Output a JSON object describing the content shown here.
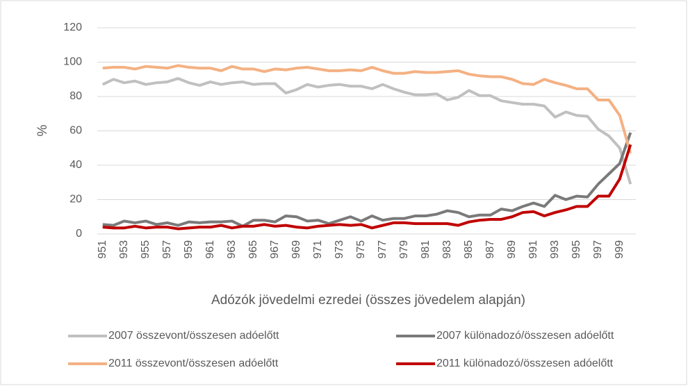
{
  "chart_data": {
    "type": "line",
    "x_label": "Adózók jövedelmi ezredei (összes jövedelem alapján)",
    "y_label": "%",
    "categories": [
      "951",
      null,
      "953",
      null,
      "955",
      null,
      "957",
      null,
      "959",
      null,
      "961",
      null,
      "963",
      null,
      "965",
      null,
      "967",
      null,
      "969",
      null,
      "971",
      null,
      "973",
      null,
      "975",
      null,
      "977",
      null,
      "979",
      null,
      "981",
      null,
      "983",
      null,
      "985",
      null,
      "987",
      null,
      "989",
      null,
      "991",
      null,
      "993",
      null,
      "995",
      null,
      "997",
      null,
      "999",
      null
    ],
    "series": [
      {
        "name": "2007 összevont/összesen adóelőtt",
        "color": "#c0c0c0",
        "values": [
          87,
          90,
          88,
          89,
          87,
          88,
          88.5,
          90.5,
          88,
          86.5,
          88.5,
          87,
          88,
          88.5,
          87,
          87.5,
          87.5,
          82,
          84,
          87,
          85.5,
          86.5,
          87,
          86,
          86,
          84.5,
          87,
          84.5,
          82.5,
          81,
          81,
          81.5,
          78,
          79.5,
          83.5,
          80.5,
          80.5,
          77.5,
          76.5,
          75.5,
          75.5,
          74.5,
          68,
          71,
          69,
          68.5,
          61,
          57,
          50,
          29
        ]
      },
      {
        "name": "2007 különadozó/összesen adóelőtt",
        "color": "#7a7a7a",
        "values": [
          5.5,
          5,
          7.5,
          6.5,
          7.5,
          5.5,
          6.5,
          5,
          7,
          6.5,
          7,
          7,
          7.5,
          4.5,
          8,
          8,
          7,
          10.5,
          10,
          7.5,
          8,
          6,
          8,
          10,
          7.5,
          10.5,
          8,
          9,
          9,
          10.5,
          10.5,
          11.5,
          13.5,
          12.5,
          10,
          11,
          11,
          14.5,
          13.5,
          16,
          18,
          16,
          22.5,
          20,
          22,
          21.5,
          29,
          35,
          41,
          59
        ]
      },
      {
        "name": "2011 összevont/összesen adóelőtt",
        "color": "#f4b183",
        "values": [
          96.5,
          97,
          97,
          96,
          97.5,
          97,
          96.5,
          98,
          97,
          96.5,
          96.5,
          95,
          97.5,
          96,
          96,
          94.5,
          96,
          95.5,
          96.5,
          97,
          96,
          95,
          95,
          95.5,
          95,
          97,
          95,
          93.5,
          93.5,
          94.5,
          94,
          94,
          94.5,
          95,
          93,
          92,
          91.5,
          91.5,
          90,
          87.5,
          87,
          90,
          88,
          86.5,
          84.5,
          84.5,
          78,
          78,
          69,
          47
        ]
      },
      {
        "name": "2011 különadozó/összesen adóelőtt",
        "color": "#c00000",
        "values": [
          4,
          3.5,
          3.5,
          4.5,
          3.5,
          4,
          4,
          3,
          3.5,
          4,
          4,
          5,
          3.5,
          4.5,
          4.5,
          5.5,
          4.5,
          5,
          4,
          3.5,
          4.5,
          5,
          5.5,
          5,
          5.5,
          3.5,
          5,
          6.5,
          6.5,
          6,
          6,
          6,
          6,
          5,
          7,
          8,
          8.5,
          8.5,
          10,
          12.5,
          13,
          10.5,
          12.5,
          14,
          16,
          16,
          22,
          22,
          32,
          52
        ]
      }
    ],
    "ylim": [
      0,
      120
    ],
    "yticks": [
      0,
      20,
      40,
      60,
      80,
      100,
      120
    ],
    "grid": true
  }
}
